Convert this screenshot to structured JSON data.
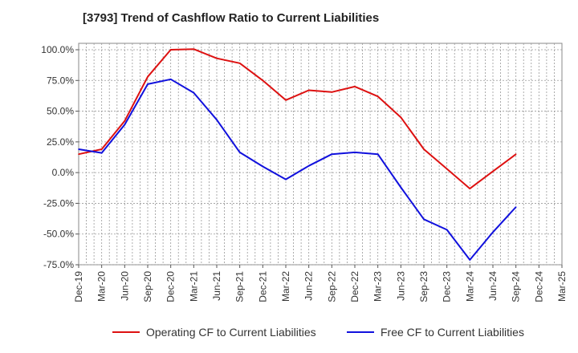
{
  "title": "[3793]  Trend of Cashflow Ratio to Current Liabilities",
  "chart_data": {
    "type": "line",
    "title": "[3793]  Trend of Cashflow Ratio to Current Liabilities",
    "xlabel": "",
    "ylabel": "",
    "ylim": [
      -75,
      100
    ],
    "yticks": [
      100,
      75,
      50,
      25,
      0,
      -25,
      -50,
      -75
    ],
    "ytick_labels": [
      "100.0%",
      "75.0%",
      "50.0%",
      "25.0%",
      "0.0%",
      "-25.0%",
      "-50.0%",
      "-75.0%"
    ],
    "x": [
      "Dec-19",
      "Mar-20",
      "Jun-20",
      "Sep-20",
      "Dec-20",
      "Mar-21",
      "Jun-21",
      "Sep-21",
      "Dec-21",
      "Mar-22",
      "Jun-22",
      "Sep-22",
      "Dec-22",
      "Mar-23",
      "Jun-23",
      "Sep-23",
      "Dec-23",
      "Mar-24",
      "Jun-24",
      "Sep-24",
      "Dec-24",
      "Mar-25"
    ],
    "grid": true,
    "legend_position": "bottom",
    "series": [
      {
        "name": "Operating CF to Current Liabilities",
        "color": "#dd1111",
        "values": [
          15,
          19,
          42,
          78,
          100,
          100.5,
          93,
          89,
          75,
          59,
          67,
          65.5,
          70,
          62,
          45,
          19,
          3,
          -13,
          1,
          15,
          null,
          null
        ]
      },
      {
        "name": "Free CF to Current Liabilities",
        "color": "#1111dd",
        "values": [
          19,
          16,
          39,
          72,
          76,
          65,
          43,
          16.5,
          5,
          -5.5,
          5.5,
          15,
          16.5,
          15,
          -12,
          -38,
          -46.5,
          -71,
          -48.5,
          -28,
          null,
          null
        ]
      }
    ]
  }
}
